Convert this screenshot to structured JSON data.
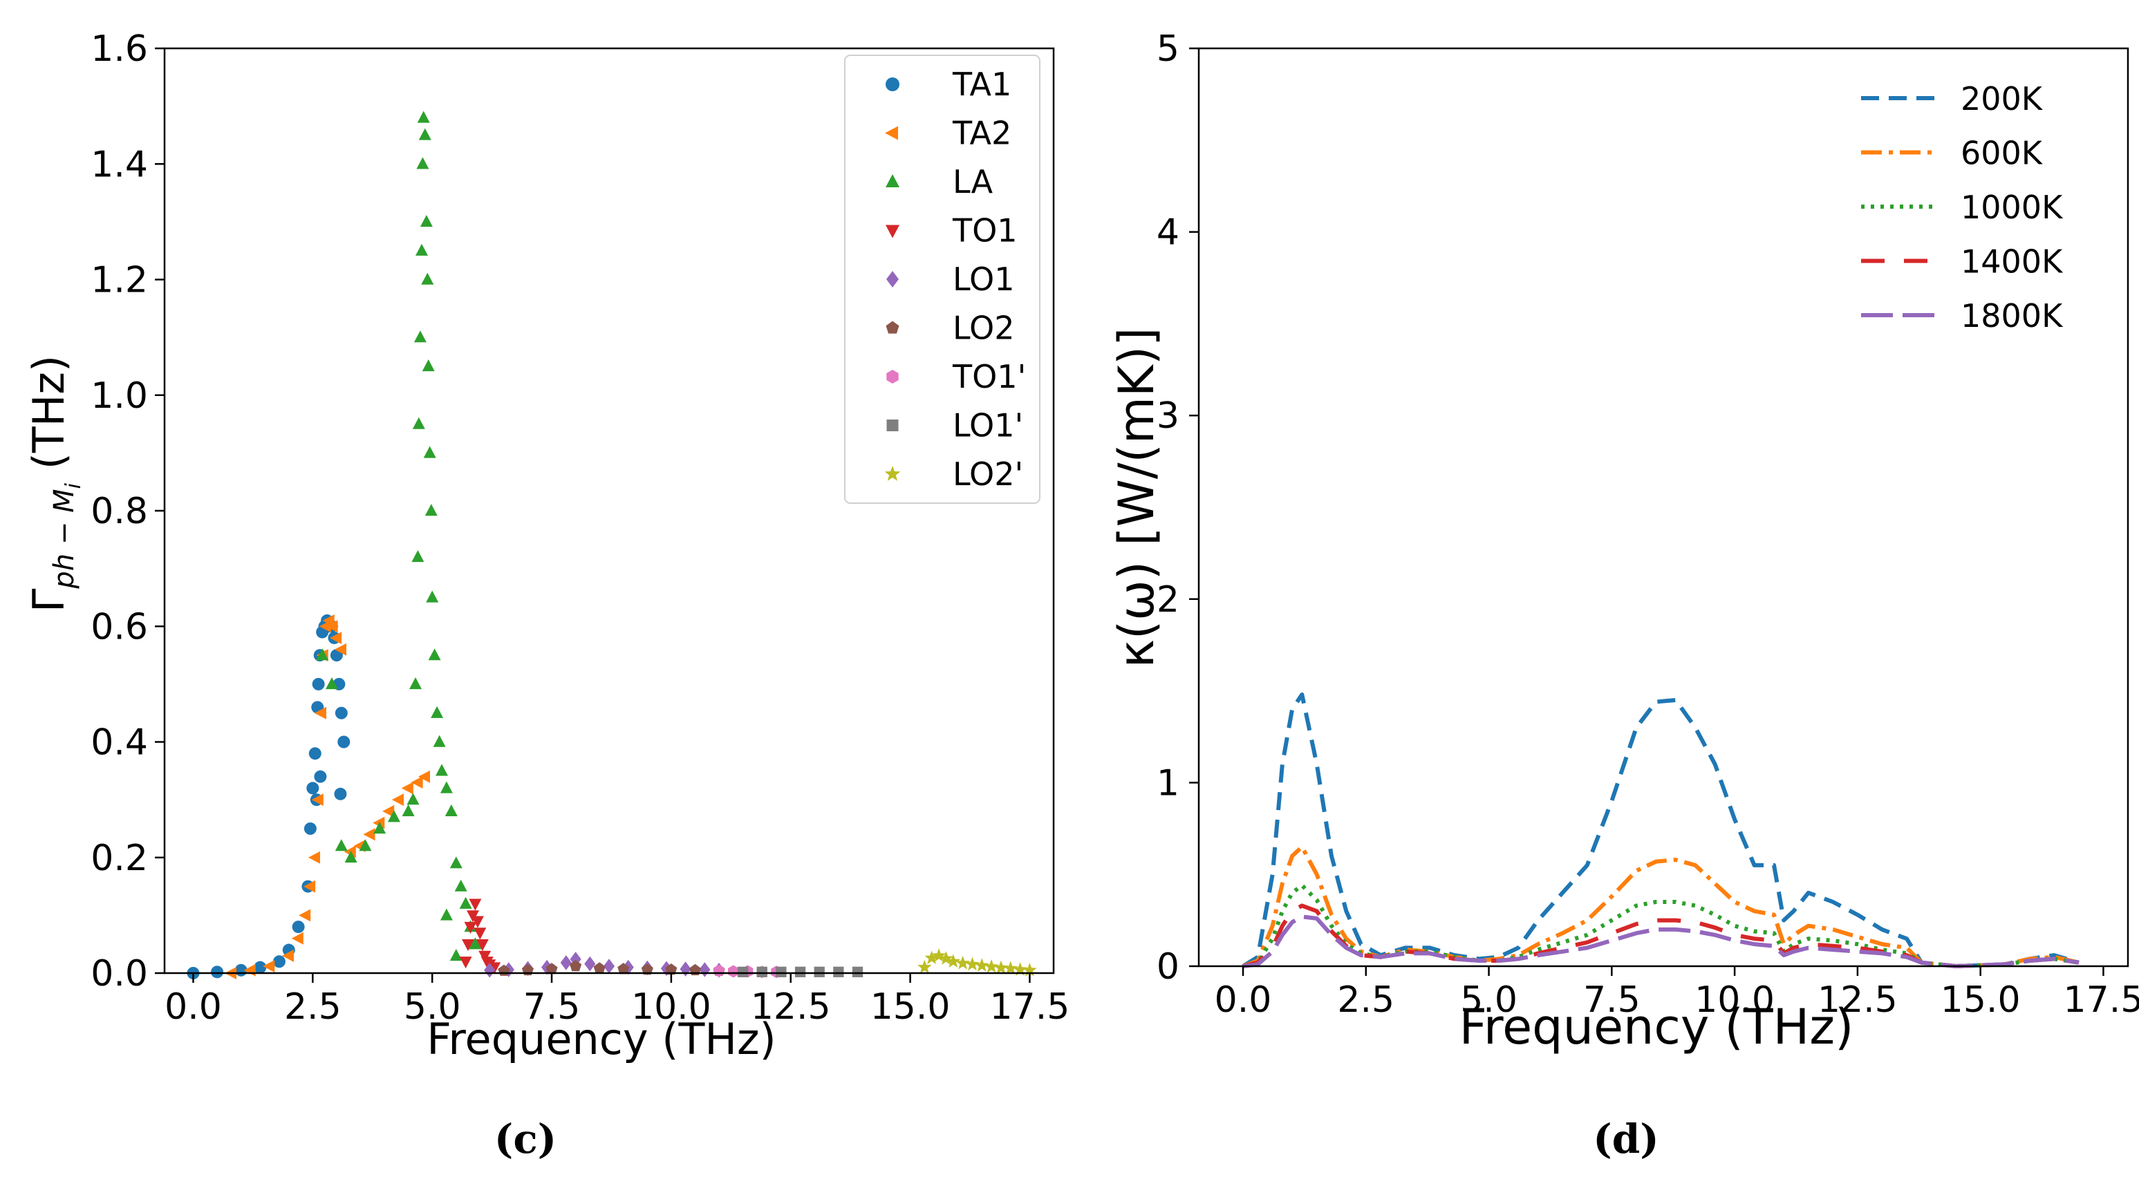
{
  "chart_data": [
    {
      "type": "scatter",
      "panel_label": "(c)",
      "title": "",
      "xlabel": "Frequency (THz)",
      "ylabel_prefix": "Γ",
      "ylabel_subscript": "ph − M",
      "ylabel_sub_i": "i",
      "ylabel_suffix": " (THz)",
      "xlim": [
        -0.6,
        18.0
      ],
      "ylim": [
        0.0,
        1.6
      ],
      "xticks": [
        0.0,
        2.5,
        5.0,
        7.5,
        10.0,
        12.5,
        15.0,
        17.5
      ],
      "xtick_labels": [
        "0.0",
        "2.5",
        "5.0",
        "7.5",
        "10.0",
        "12.5",
        "15.0",
        "17.5"
      ],
      "yticks": [
        0.0,
        0.2,
        0.4,
        0.6,
        0.8,
        1.0,
        1.2,
        1.4,
        1.6
      ],
      "ytick_labels": [
        "0.0",
        "0.2",
        "0.4",
        "0.6",
        "0.8",
        "1.0",
        "1.2",
        "1.4",
        "1.6"
      ],
      "legend_position": "top-right",
      "series": [
        {
          "name": "TA1",
          "color": "#1f77b4",
          "marker": "circle",
          "x": [
            0.0,
            0.5,
            1.0,
            1.4,
            1.8,
            2.0,
            2.2,
            2.4,
            2.45,
            2.5,
            2.55,
            2.6,
            2.62,
            2.65,
            2.7,
            2.75,
            2.8,
            2.85,
            2.9,
            2.95,
            3.0,
            3.05,
            3.1,
            3.15,
            2.58,
            2.66,
            3.08
          ],
          "y": [
            0.0,
            0.002,
            0.005,
            0.01,
            0.02,
            0.04,
            0.08,
            0.15,
            0.25,
            0.32,
            0.38,
            0.46,
            0.5,
            0.55,
            0.59,
            0.6,
            0.61,
            0.6,
            0.6,
            0.58,
            0.55,
            0.5,
            0.45,
            0.4,
            0.3,
            0.34,
            0.31
          ]
        },
        {
          "name": "TA2",
          "color": "#ff7f0e",
          "marker": "triangle-left",
          "x": [
            0.8,
            1.2,
            1.6,
            2.0,
            2.2,
            2.35,
            2.45,
            2.55,
            2.62,
            2.68,
            2.72,
            2.78,
            2.85,
            2.92,
            3.0,
            3.1,
            3.3,
            3.5,
            3.7,
            3.9,
            4.1,
            4.3,
            4.5,
            4.7,
            4.85
          ],
          "y": [
            0.0,
            0.005,
            0.012,
            0.03,
            0.06,
            0.1,
            0.15,
            0.2,
            0.3,
            0.45,
            0.55,
            0.6,
            0.61,
            0.6,
            0.58,
            0.56,
            0.21,
            0.22,
            0.24,
            0.26,
            0.28,
            0.3,
            0.32,
            0.33,
            0.34
          ]
        },
        {
          "name": "LA",
          "color": "#2ca02c",
          "marker": "triangle-up",
          "x": [
            2.7,
            2.9,
            3.1,
            3.3,
            3.6,
            3.9,
            4.2,
            4.5,
            4.6,
            4.65,
            4.7,
            4.72,
            4.75,
            4.78,
            4.8,
            4.82,
            4.85,
            4.88,
            4.9,
            4.92,
            4.95,
            4.98,
            5.0,
            5.05,
            5.1,
            5.15,
            5.2,
            5.3,
            5.4,
            5.5,
            5.6,
            5.7,
            5.8,
            5.9,
            5.3,
            5.5
          ],
          "y": [
            0.55,
            0.5,
            0.22,
            0.2,
            0.22,
            0.25,
            0.27,
            0.28,
            0.3,
            0.5,
            0.72,
            0.95,
            1.1,
            1.25,
            1.4,
            1.48,
            1.45,
            1.3,
            1.2,
            1.05,
            0.9,
            0.8,
            0.65,
            0.55,
            0.45,
            0.4,
            0.35,
            0.32,
            0.28,
            0.19,
            0.15,
            0.12,
            0.08,
            0.05,
            0.1,
            0.03
          ]
        },
        {
          "name": "TO1",
          "color": "#d62728",
          "marker": "triangle-down",
          "x": [
            5.7,
            5.75,
            5.8,
            5.85,
            5.9,
            5.95,
            6.0,
            6.05,
            6.1,
            6.15,
            6.2,
            6.3
          ],
          "y": [
            0.02,
            0.05,
            0.08,
            0.1,
            0.12,
            0.09,
            0.07,
            0.05,
            0.03,
            0.02,
            0.015,
            0.01
          ]
        },
        {
          "name": "LO1",
          "color": "#9467bd",
          "marker": "diamond",
          "x": [
            6.2,
            6.6,
            7.0,
            7.4,
            7.8,
            8.0,
            8.3,
            8.7,
            9.1,
            9.5,
            9.9,
            10.3,
            10.7,
            11.0
          ],
          "y": [
            0.005,
            0.006,
            0.008,
            0.01,
            0.018,
            0.024,
            0.016,
            0.012,
            0.01,
            0.009,
            0.008,
            0.007,
            0.006,
            0.005
          ]
        },
        {
          "name": "LO2",
          "color": "#8c564b",
          "marker": "pentagon",
          "x": [
            6.5,
            7.0,
            7.5,
            8.0,
            8.5,
            9.0,
            9.5,
            10.0,
            10.5,
            11.0
          ],
          "y": [
            0.004,
            0.005,
            0.007,
            0.012,
            0.008,
            0.007,
            0.006,
            0.006,
            0.005,
            0.004
          ]
        },
        {
          "name": "TO1'",
          "color": "#e377c2",
          "marker": "hexagon",
          "x": [
            11.0,
            11.3,
            11.6,
            11.9,
            12.2
          ],
          "y": [
            0.004,
            0.003,
            0.003,
            0.002,
            0.002
          ]
        },
        {
          "name": "LO1'",
          "color": "#7f7f7f",
          "marker": "square",
          "x": [
            11.5,
            11.9,
            12.3,
            12.7,
            13.1,
            13.5,
            13.9
          ],
          "y": [
            0.002,
            0.002,
            0.002,
            0.002,
            0.002,
            0.002,
            0.002
          ]
        },
        {
          "name": "LO2'",
          "color": "#bcbd22",
          "marker": "star",
          "x": [
            15.3,
            15.45,
            15.6,
            15.75,
            15.9,
            16.1,
            16.3,
            16.5,
            16.7,
            16.9,
            17.1,
            17.3,
            17.5
          ],
          "y": [
            0.01,
            0.026,
            0.03,
            0.025,
            0.02,
            0.017,
            0.015,
            0.013,
            0.011,
            0.009,
            0.008,
            0.006,
            0.005
          ]
        }
      ]
    },
    {
      "type": "line",
      "panel_label": "(d)",
      "title": "",
      "xlabel": "Frequency (THz)",
      "ylabel": "κ(ω) [W/(mK)]",
      "xlim": [
        -0.9,
        18.0
      ],
      "ylim": [
        0,
        5
      ],
      "xticks": [
        0.0,
        2.5,
        5.0,
        7.5,
        10.0,
        12.5,
        15.0,
        17.5
      ],
      "xtick_labels": [
        "0.0",
        "2.5",
        "5.0",
        "7.5",
        "10.0",
        "12.5",
        "15.0",
        "17.5"
      ],
      "yticks": [
        0,
        1,
        2,
        3,
        4,
        5
      ],
      "ytick_labels": [
        "0",
        "1",
        "2",
        "3",
        "4",
        "5"
      ],
      "legend_position": "top-right",
      "x": [
        0.0,
        0.3,
        0.6,
        0.8,
        1.0,
        1.2,
        1.5,
        1.8,
        2.1,
        2.4,
        2.8,
        3.3,
        3.8,
        4.3,
        4.8,
        5.2,
        5.6,
        6.0,
        6.5,
        7.0,
        7.5,
        8.0,
        8.4,
        8.8,
        9.2,
        9.6,
        10.0,
        10.4,
        10.8,
        11.0,
        11.2,
        11.5,
        12.0,
        12.5,
        13.0,
        13.5,
        13.8,
        14.5,
        15.5,
        16.0,
        16.5,
        17.0
      ],
      "series": [
        {
          "name": "200K",
          "color": "#1f77b4",
          "dash": "26,14",
          "values": [
            0.0,
            0.05,
            0.5,
            1.1,
            1.4,
            1.48,
            1.1,
            0.6,
            0.3,
            0.12,
            0.06,
            0.1,
            0.1,
            0.06,
            0.04,
            0.05,
            0.1,
            0.25,
            0.4,
            0.55,
            0.9,
            1.3,
            1.44,
            1.45,
            1.3,
            1.1,
            0.8,
            0.55,
            0.55,
            0.25,
            0.3,
            0.4,
            0.35,
            0.28,
            0.2,
            0.15,
            0.02,
            0.0,
            0.01,
            0.04,
            0.06,
            0.02
          ]
        },
        {
          "name": "600K",
          "color": "#ff7f0e",
          "dash": "30,10,6,10",
          "values": [
            0.0,
            0.03,
            0.22,
            0.45,
            0.6,
            0.65,
            0.5,
            0.28,
            0.15,
            0.08,
            0.05,
            0.09,
            0.08,
            0.05,
            0.03,
            0.04,
            0.06,
            0.12,
            0.18,
            0.25,
            0.38,
            0.52,
            0.57,
            0.58,
            0.55,
            0.45,
            0.35,
            0.3,
            0.28,
            0.12,
            0.17,
            0.22,
            0.2,
            0.16,
            0.12,
            0.1,
            0.02,
            0.0,
            0.01,
            0.04,
            0.05,
            0.02
          ]
        },
        {
          "name": "1000K",
          "color": "#2ca02c",
          "dash": "5,9",
          "values": [
            0.0,
            0.02,
            0.15,
            0.3,
            0.4,
            0.44,
            0.36,
            0.22,
            0.12,
            0.07,
            0.05,
            0.08,
            0.08,
            0.05,
            0.03,
            0.03,
            0.05,
            0.09,
            0.13,
            0.17,
            0.25,
            0.33,
            0.35,
            0.35,
            0.33,
            0.28,
            0.22,
            0.19,
            0.18,
            0.08,
            0.12,
            0.15,
            0.14,
            0.12,
            0.09,
            0.07,
            0.02,
            0.0,
            0.01,
            0.03,
            0.04,
            0.02
          ]
        },
        {
          "name": "1400K",
          "color": "#d62728",
          "dash": "34,28",
          "values": [
            0.0,
            0.02,
            0.1,
            0.22,
            0.3,
            0.33,
            0.3,
            0.19,
            0.11,
            0.06,
            0.05,
            0.08,
            0.07,
            0.04,
            0.03,
            0.03,
            0.04,
            0.07,
            0.1,
            0.13,
            0.18,
            0.23,
            0.25,
            0.25,
            0.24,
            0.21,
            0.17,
            0.15,
            0.14,
            0.07,
            0.1,
            0.12,
            0.11,
            0.1,
            0.08,
            0.06,
            0.02,
            0.0,
            0.01,
            0.03,
            0.04,
            0.02
          ]
        },
        {
          "name": "1800K",
          "color": "#9467bd",
          "dash": "46,14",
          "values": [
            0.0,
            0.01,
            0.08,
            0.17,
            0.24,
            0.27,
            0.26,
            0.17,
            0.1,
            0.06,
            0.05,
            0.07,
            0.07,
            0.04,
            0.03,
            0.03,
            0.04,
            0.06,
            0.08,
            0.1,
            0.14,
            0.18,
            0.2,
            0.2,
            0.19,
            0.17,
            0.14,
            0.12,
            0.11,
            0.06,
            0.08,
            0.1,
            0.09,
            0.08,
            0.07,
            0.05,
            0.02,
            0.0,
            0.01,
            0.03,
            0.04,
            0.02
          ]
        }
      ]
    }
  ]
}
